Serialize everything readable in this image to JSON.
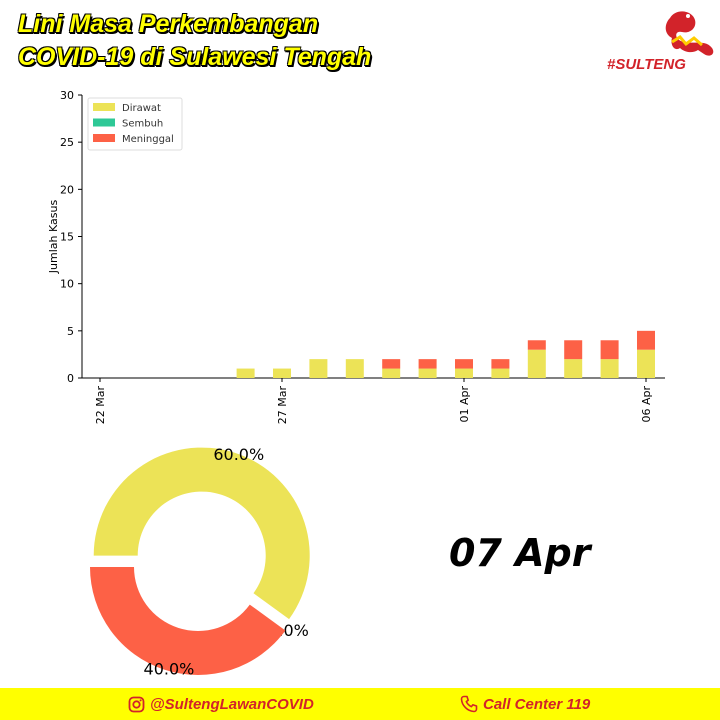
{
  "title": {
    "line1": "Lini Masa Perkembangan",
    "line2": "COVID-19 di Sulawesi Tengah"
  },
  "logo": {
    "text": "#SULTENG"
  },
  "colors": {
    "dirawat": "#ece357",
    "sembuh": "#2ec896",
    "meninggal": "#fd6146",
    "brand_red": "#d2232a",
    "footer_bg": "#ffff00"
  },
  "chart_data": [
    {
      "type": "bar",
      "stacked": true,
      "ylabel": "Jumlah Kasus",
      "ylim": [
        0,
        30
      ],
      "yticks": [
        0,
        5,
        10,
        15,
        20,
        25,
        30
      ],
      "legend_position": "top-left",
      "xtick_labels": [
        {
          "index": 0,
          "label": "22 Mar"
        },
        {
          "index": 5,
          "label": "27 Mar"
        },
        {
          "index": 10,
          "label": "01 Apr"
        },
        {
          "index": 15,
          "label": "06 Apr"
        }
      ],
      "categories": [
        "22 Mar",
        "23 Mar",
        "24 Mar",
        "25 Mar",
        "26 Mar",
        "27 Mar",
        "28 Mar",
        "29 Mar",
        "30 Mar",
        "31 Mar",
        "01 Apr",
        "02 Apr",
        "03 Apr",
        "04 Apr",
        "05 Apr",
        "06 Apr"
      ],
      "series": [
        {
          "name": "Dirawat",
          "color": "#ece357",
          "values": [
            0,
            0,
            0,
            0,
            1,
            1,
            2,
            2,
            1,
            1,
            1,
            1,
            3,
            2,
            2,
            3
          ]
        },
        {
          "name": "Sembuh",
          "color": "#2ec896",
          "values": [
            0,
            0,
            0,
            0,
            0,
            0,
            0,
            0,
            0,
            0,
            0,
            0,
            0,
            0,
            0,
            0
          ]
        },
        {
          "name": "Meninggal",
          "color": "#fd6146",
          "values": [
            0,
            0,
            0,
            0,
            0,
            0,
            0,
            0,
            1,
            1,
            1,
            1,
            1,
            2,
            2,
            2
          ]
        }
      ]
    },
    {
      "type": "pie",
      "donut": true,
      "slices": [
        {
          "name": "Dirawat",
          "value": 60.0,
          "label": "60.0%",
          "color": "#ece357",
          "exploded": true
        },
        {
          "name": "Sembuh",
          "value": 0.0,
          "label": "0.0%",
          "color": "#2ec896",
          "exploded": false
        },
        {
          "name": "Meninggal",
          "value": 40.0,
          "label": "40.0%",
          "color": "#fd6146",
          "exploded": false
        }
      ]
    }
  ],
  "date_label": "07 Apr",
  "footer": {
    "instagram": "@SultengLawanCOVID",
    "call_center": "Call Center 119"
  }
}
